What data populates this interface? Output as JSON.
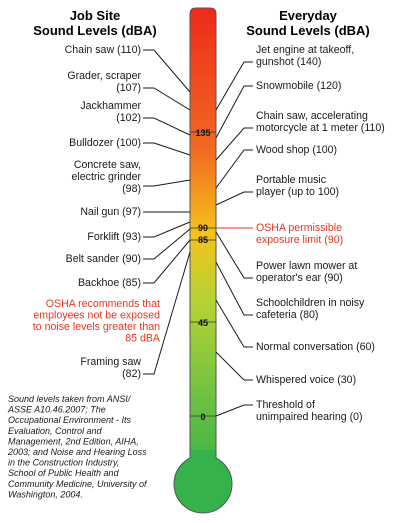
{
  "headers": {
    "left_line1": "Job Site",
    "left_line2": "Sound Levels (dBA)",
    "right_line1": "Everyday",
    "right_line2": "Sound Levels (dBA)"
  },
  "thermometer": {
    "scale_labels": [
      "135",
      "90",
      "85",
      "45",
      "0"
    ],
    "colors": {
      "top": "#ee2a1a",
      "upper": "#f16a22",
      "middle": "#f5c21a",
      "lower": "#b6d334",
      "bottom": "#35b34a"
    }
  },
  "left_items": [
    {
      "lines": [
        "Chain saw (110)"
      ]
    },
    {
      "lines": [
        "Grader, scraper",
        "(107)"
      ]
    },
    {
      "lines": [
        "Jackhammer",
        "(102)"
      ]
    },
    {
      "lines": [
        "Bulldozer (100)"
      ]
    },
    {
      "lines": [
        "Concrete saw,",
        "electric grinder",
        "(98)"
      ]
    },
    {
      "lines": [
        "Nail gun (97)"
      ]
    },
    {
      "lines": [
        "Forklift (93)"
      ]
    },
    {
      "lines": [
        "Belt sander (90)"
      ]
    },
    {
      "lines": [
        "Backhoe (85)"
      ]
    },
    {
      "lines": [
        "Framing saw",
        "(82)"
      ]
    }
  ],
  "left_osha": {
    "lines": [
      "OSHA recommends that",
      "employees not be exposed",
      "to noise levels greater than",
      "85 dBA"
    ]
  },
  "right_items": [
    {
      "lines": [
        "Jet engine at takeoff,",
        "gunshot (140)"
      ]
    },
    {
      "lines": [
        "Snowmobile (120)"
      ]
    },
    {
      "lines": [
        "Chain saw, accelerating",
        "motorcycle at 1 meter (110)"
      ]
    },
    {
      "lines": [
        "Wood shop (100)"
      ]
    },
    {
      "lines": [
        "Portable music",
        "player (up to 100)"
      ]
    },
    {
      "lines": [
        "Power lawn mower at",
        "operator's ear (90)"
      ]
    },
    {
      "lines": [
        "Schoolchildren in noisy",
        "cafeteria (80)"
      ]
    },
    {
      "lines": [
        "Normal conversation (60)"
      ]
    },
    {
      "lines": [
        "Whispered voice (30)"
      ]
    },
    {
      "lines": [
        "Threshold of",
        "unimpaired hearing (0)"
      ]
    }
  ],
  "right_osha": {
    "lines": [
      "OSHA permissible",
      "exposure limit (90)"
    ]
  },
  "source_note": {
    "lines": [
      "Sound levels taken from ANSI/",
      "ASSE A10.46.2007; The",
      "Occupational Environment - Its",
      "Evaluation, Control and",
      "Management, 2nd Edition, AIHA,",
      "2003; and Noise and Hearing Loss",
      "in the Construction Industry,",
      "School of Public Health and",
      "Community Medicine, University of",
      "Washington, 2004."
    ]
  }
}
